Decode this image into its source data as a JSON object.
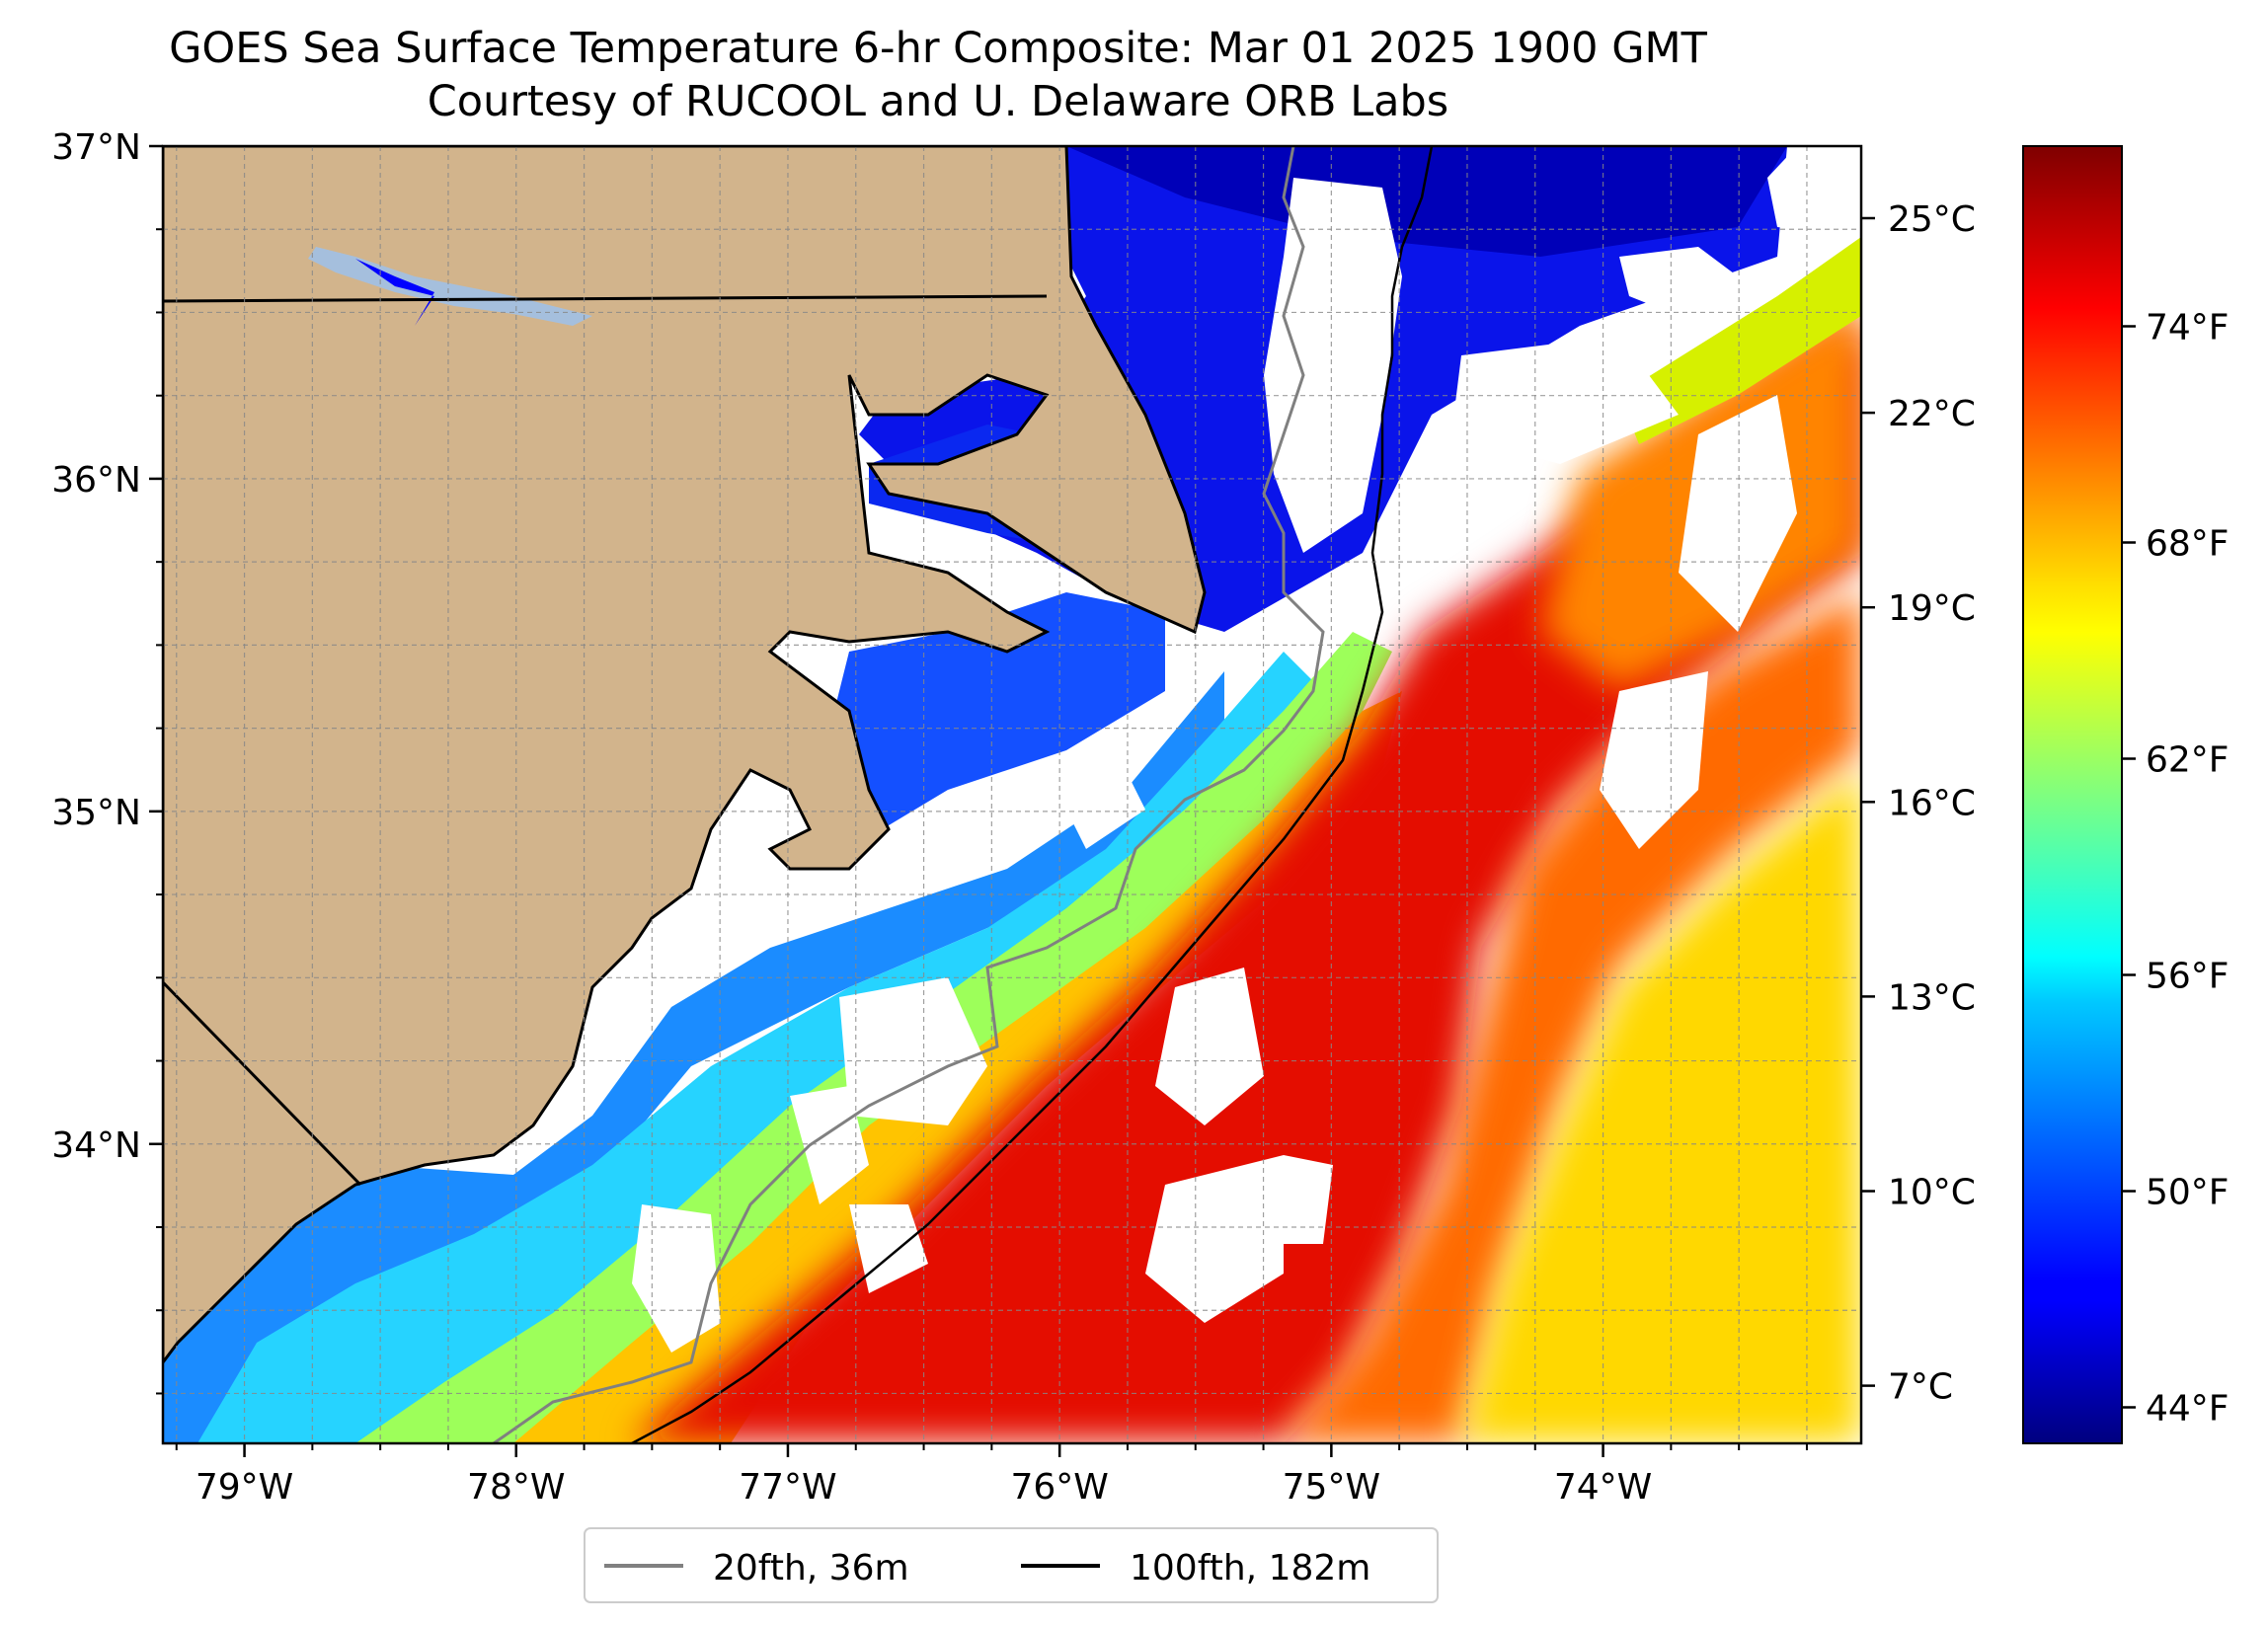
{
  "title": "GOES Sea Surface Temperature 6-hr Composite: Mar 01 2025 1900 GMT",
  "subtitle": "Courtesy of RUCOOL and U. Delaware ORB Labs",
  "map": {
    "lon_range": [
      -79.3,
      -73.05
    ],
    "lat_range": [
      33.1,
      37.0
    ],
    "grid": true,
    "lon_ticks": [
      -79,
      -78,
      -77,
      -76,
      -75,
      -74
    ],
    "lon_tick_labels": [
      "79°W",
      "78°W",
      "77°W",
      "76°W",
      "75°W",
      "74°W"
    ],
    "lat_ticks": [
      37,
      36,
      35,
      34
    ],
    "lat_tick_labels": [
      "37°N",
      "36°N",
      "35°N",
      "34°N"
    ],
    "colors": {
      "land": "#d2b48c",
      "lakes": "#a5bfdd",
      "coast": "#000000",
      "isobath_20fth": "#808080",
      "isobath_100fth": "#000000"
    }
  },
  "colorbar": {
    "colormap": "jet",
    "celsius_ticks": [
      25,
      22,
      19,
      16,
      13,
      10,
      7
    ],
    "celsius_labels": [
      "25°C",
      "22°C",
      "19°C",
      "16°C",
      "13°C",
      "10°C",
      "7°C"
    ],
    "fahrenheit_ticks": [
      74,
      68,
      62,
      56,
      50,
      44
    ],
    "fahrenheit_labels": [
      "74°F",
      "68°F",
      "62°F",
      "56°F",
      "50°F",
      "44°F"
    ],
    "range_f": [
      43,
      79
    ]
  },
  "legend": {
    "placement": "bottom-center",
    "entries": [
      {
        "label": "20fth, 36m",
        "color": "#808080"
      },
      {
        "label": "100fth, 182m",
        "color": "#000000"
      }
    ]
  }
}
